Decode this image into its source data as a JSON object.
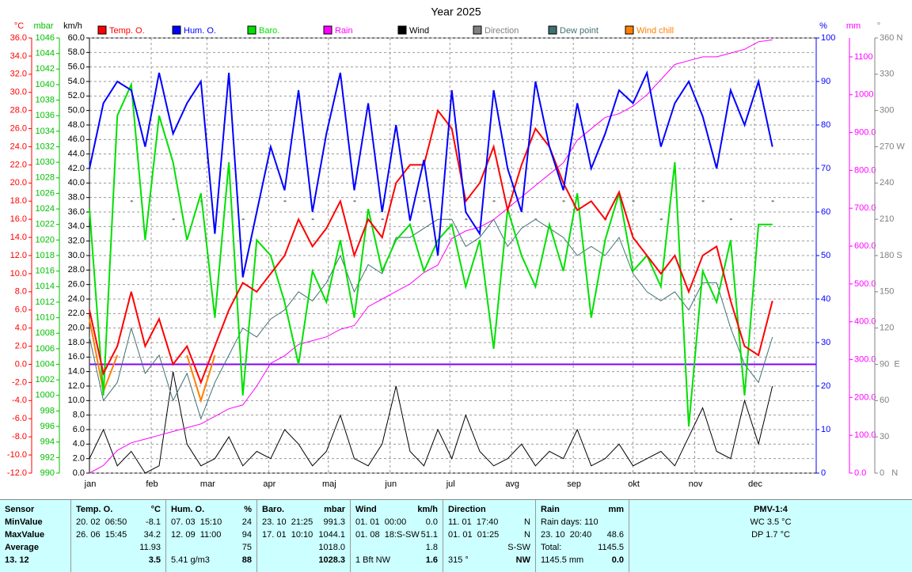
{
  "chart_data": {
    "type": "line",
    "title": "Year 2025",
    "xlim": [
      1,
      366
    ],
    "xticks": [
      {
        "value": 1,
        "label": "jan"
      },
      {
        "value": 32,
        "label": "feb"
      },
      {
        "value": 60,
        "label": "mar"
      },
      {
        "value": 91,
        "label": "apr"
      },
      {
        "value": 121,
        "label": "maj"
      },
      {
        "value": 152,
        "label": "jun"
      },
      {
        "value": 182,
        "label": "jul"
      },
      {
        "value": 213,
        "label": "avg"
      },
      {
        "value": 244,
        "label": "sep"
      },
      {
        "value": 274,
        "label": "okt"
      },
      {
        "value": 305,
        "label": "nov"
      },
      {
        "value": 335,
        "label": "dec"
      }
    ],
    "axes": {
      "temp": {
        "label": "°C",
        "color": "#ff0000",
        "lim": [
          -12,
          36
        ],
        "ticks": [
          {
            "value": -12,
            "label": "-12.0"
          },
          {
            "value": -10,
            "label": "-10.0"
          },
          {
            "value": -8,
            "label": "-8.0"
          },
          {
            "value": -6,
            "label": "-6.0"
          },
          {
            "value": -4,
            "label": "-4.0"
          },
          {
            "value": -2,
            "label": "-2.0"
          },
          {
            "value": 0,
            "label": "0.0"
          },
          {
            "value": 2,
            "label": "2.0"
          },
          {
            "value": 4,
            "label": "4.0"
          },
          {
            "value": 6,
            "label": "6.0"
          },
          {
            "value": 8,
            "label": "8.0"
          },
          {
            "value": 10,
            "label": "10.0"
          },
          {
            "value": 12,
            "label": "12.0"
          },
          {
            "value": 14,
            "label": "14.0"
          },
          {
            "value": 16,
            "label": "16.0"
          },
          {
            "value": 18,
            "label": "18.0"
          },
          {
            "value": 20,
            "label": "20.0"
          },
          {
            "value": 22,
            "label": "22.0"
          },
          {
            "value": 24,
            "label": "24.0"
          },
          {
            "value": 26,
            "label": "26.0"
          },
          {
            "value": 28,
            "label": "28.0"
          },
          {
            "value": 30,
            "label": "30.0"
          },
          {
            "value": 32,
            "label": "32.0"
          },
          {
            "value": 34,
            "label": "34.0"
          },
          {
            "value": 36,
            "label": "36.0"
          }
        ]
      },
      "mbar": {
        "label": "mbar",
        "color": "#00c000",
        "lim": [
          990,
          1046
        ],
        "ticks": [
          990,
          992,
          994,
          996,
          998,
          1000,
          1002,
          1004,
          1006,
          1008,
          1010,
          1012,
          1014,
          1016,
          1018,
          1020,
          1022,
          1024,
          1026,
          1028,
          1030,
          1032,
          1034,
          1036,
          1038,
          1040,
          1042,
          1044,
          1046
        ]
      },
      "kmh": {
        "label": "km/h",
        "color": "#000000",
        "lim": [
          0,
          60
        ],
        "ticks": [
          {
            "value": 0,
            "label": "0.0"
          },
          {
            "value": 2,
            "label": "2.0"
          },
          {
            "value": 4,
            "label": "4.0"
          },
          {
            "value": 6,
            "label": "6.0"
          },
          {
            "value": 8,
            "label": "8.0"
          },
          {
            "value": 10,
            "label": "10.0"
          },
          {
            "value": 12,
            "label": "12.0"
          },
          {
            "value": 14,
            "label": "14.0"
          },
          {
            "value": 16,
            "label": "16.0"
          },
          {
            "value": 18,
            "label": "18.0"
          },
          {
            "value": 20,
            "label": "20.0"
          },
          {
            "value": 22,
            "label": "22.0"
          },
          {
            "value": 24,
            "label": "24.0"
          },
          {
            "value": 26,
            "label": "26.0"
          },
          {
            "value": 28,
            "label": "28.0"
          },
          {
            "value": 30,
            "label": "30.0"
          },
          {
            "value": 32,
            "label": "32.0"
          },
          {
            "value": 34,
            "label": "34.0"
          },
          {
            "value": 36,
            "label": "36.0"
          },
          {
            "value": 38,
            "label": "38.0"
          },
          {
            "value": 40,
            "label": "40.0"
          },
          {
            "value": 42,
            "label": "42.0"
          },
          {
            "value": 44,
            "label": "44.0"
          },
          {
            "value": 46,
            "label": "46.0"
          },
          {
            "value": 48,
            "label": "48.0"
          },
          {
            "value": 50,
            "label": "50.0"
          },
          {
            "value": 52,
            "label": "52.0"
          },
          {
            "value": 54,
            "label": "54.0"
          },
          {
            "value": 56,
            "label": "56.0"
          },
          {
            "value": 58,
            "label": "58.0"
          },
          {
            "value": 60,
            "label": "60.0"
          }
        ]
      },
      "pct": {
        "label": "%",
        "color": "#0000ff",
        "lim": [
          0,
          100
        ],
        "ticks": [
          0,
          10,
          20,
          30,
          40,
          50,
          60,
          70,
          80,
          90,
          100
        ]
      },
      "mm": {
        "label": "mm",
        "color": "#ff00ff",
        "lim": [
          0,
          1150
        ],
        "ticks": [
          {
            "value": 0,
            "label": "0.0"
          },
          {
            "value": 100,
            "label": "100.0"
          },
          {
            "value": 200,
            "label": "200.0"
          },
          {
            "value": 300,
            "label": "300.0"
          },
          {
            "value": 400,
            "label": "400.0"
          },
          {
            "value": 500,
            "label": "500.0"
          },
          {
            "value": 600,
            "label": "600.0"
          },
          {
            "value": 700,
            "label": "700.0"
          },
          {
            "value": 800,
            "label": "800.0"
          },
          {
            "value": 900,
            "label": "900.0"
          },
          1000,
          1100
        ]
      },
      "dir": {
        "label": "°",
        "color": "#808080",
        "lim": [
          0,
          360
        ],
        "ticks": [
          {
            "value": 0,
            "label": "0   N"
          },
          30,
          60,
          {
            "value": 90,
            "label": "90  E"
          },
          120,
          150,
          {
            "value": 180,
            "label": "180 S"
          },
          210,
          240,
          {
            "value": 270,
            "label": "270 W"
          },
          300,
          330,
          {
            "value": 360,
            "label": "360 N"
          }
        ]
      }
    },
    "x": [
      1,
      8,
      15,
      22,
      29,
      36,
      43,
      50,
      57,
      64,
      71,
      78,
      85,
      92,
      99,
      106,
      113,
      120,
      127,
      134,
      141,
      148,
      155,
      162,
      169,
      176,
      183,
      190,
      197,
      204,
      211,
      218,
      225,
      232,
      239,
      246,
      253,
      260,
      267,
      274,
      281,
      288,
      295,
      302,
      309,
      316,
      323,
      330,
      337,
      344
    ],
    "series": [
      {
        "name": "Temp. O.",
        "color": "#ff0000",
        "axis": "temp",
        "values": [
          6,
          -1,
          2,
          8,
          2,
          5,
          0,
          2,
          -2,
          2,
          6,
          9,
          8,
          10,
          12,
          16,
          13,
          15,
          18,
          12,
          16,
          14,
          20,
          22,
          22,
          28,
          26,
          18,
          20,
          24,
          17,
          22,
          26,
          24,
          20,
          17,
          18,
          16,
          19,
          14,
          12,
          10,
          12,
          8,
          12,
          13,
          7,
          2,
          1,
          7
        ]
      },
      {
        "name": "Hum. O.",
        "color": "#0000ff",
        "axis": "pct",
        "values": [
          70,
          85,
          90,
          88,
          75,
          92,
          78,
          85,
          90,
          55,
          92,
          45,
          60,
          75,
          65,
          88,
          60,
          78,
          92,
          65,
          85,
          60,
          80,
          58,
          72,
          50,
          88,
          60,
          55,
          88,
          70,
          60,
          90,
          75,
          65,
          85,
          70,
          78,
          88,
          85,
          92,
          75,
          85,
          90,
          82,
          70,
          88,
          80,
          90,
          75
        ]
      },
      {
        "name": "Baro.",
        "color": "#00e000",
        "axis": "mbar",
        "values": [
          1024,
          1000,
          1036,
          1040,
          1020,
          1036,
          1030,
          1020,
          1026,
          1010,
          1030,
          1000,
          1020,
          1018,
          1012,
          1004,
          1016,
          1012,
          1020,
          1010,
          1024,
          1016,
          1020,
          1022,
          1016,
          1020,
          1022,
          1014,
          1020,
          1006,
          1024,
          1018,
          1014,
          1022,
          1016,
          1026,
          1010,
          1020,
          1026,
          1016,
          1018,
          1014,
          1030,
          996,
          1016,
          1012,
          1020,
          1000,
          1022,
          1022
        ]
      },
      {
        "name": "Rain",
        "color": "#ff00ff",
        "axis": "mm",
        "values": [
          0,
          20,
          60,
          80,
          90,
          100,
          110,
          120,
          130,
          150,
          170,
          180,
          230,
          290,
          310,
          340,
          350,
          360,
          380,
          390,
          440,
          460,
          480,
          500,
          530,
          550,
          620,
          640,
          650,
          670,
          700,
          730,
          760,
          790,
          820,
          880,
          910,
          940,
          950,
          970,
          1000,
          1040,
          1080,
          1090,
          1100,
          1100,
          1110,
          1120,
          1140,
          1145
        ]
      },
      {
        "name": "Wind",
        "color": "#000000",
        "axis": "kmh",
        "values": [
          2,
          6,
          1,
          3,
          0,
          1,
          14,
          4,
          1,
          2,
          5,
          1,
          3,
          2,
          6,
          4,
          1,
          3,
          8,
          2,
          1,
          4,
          12,
          3,
          1,
          6,
          2,
          8,
          3,
          1,
          2,
          4,
          1,
          3,
          2,
          6,
          1,
          2,
          4,
          1,
          2,
          3,
          1,
          5,
          9,
          3,
          2,
          10,
          4,
          12
        ]
      },
      {
        "name": "Direction",
        "color": "#808080",
        "axis": "dir",
        "marker": "dots",
        "values": [
          210,
          null,
          null,
          225,
          null,
          null,
          210,
          null,
          225,
          null,
          null,
          210,
          null,
          null,
          225,
          null,
          210,
          null,
          null,
          225,
          null,
          210,
          null,
          null,
          225,
          null,
          null,
          210,
          null,
          225,
          null,
          null,
          210,
          null,
          225,
          null,
          null,
          210,
          null,
          225,
          null,
          210,
          null,
          null,
          225,
          null,
          210,
          null,
          null,
          225
        ]
      },
      {
        "name": "Dew point",
        "color": "#407070",
        "axis": "temp",
        "values": [
          3,
          -4,
          -2,
          4,
          -1,
          1,
          -4,
          -1,
          -6,
          -2,
          1,
          4,
          3,
          5,
          6,
          8,
          7,
          9,
          12,
          8,
          11,
          10,
          14,
          14,
          15,
          16,
          16,
          13,
          14,
          16,
          13,
          15,
          16,
          15,
          14,
          12,
          13,
          12,
          14,
          10,
          8,
          7,
          8,
          6,
          9,
          9,
          4,
          0,
          -2,
          3
        ]
      },
      {
        "name": "Wind chill",
        "color": "#ff8000",
        "axis": "temp",
        "values": [
          5,
          -3,
          1,
          null,
          null,
          null,
          null,
          1,
          -4,
          1,
          null,
          null,
          null,
          null,
          null,
          null,
          null,
          null,
          null,
          null,
          null,
          null,
          null,
          null,
          null,
          null,
          null,
          null,
          null,
          null,
          null,
          null,
          null,
          null,
          null,
          null,
          null,
          null,
          null,
          null,
          null,
          null,
          null,
          null,
          null,
          null,
          null,
          null,
          null,
          null
        ]
      }
    ]
  },
  "stats": {
    "sensor": [
      "Sensor",
      "MinValue",
      "MaxValue",
      "Average",
      "13. 12"
    ],
    "columns": [
      {
        "title": "Temp. O.",
        "unit": "°C",
        "rows": [
          {
            "left": "20. 02  06:50",
            "right": "-8.1"
          },
          {
            "left": "26. 06  15:45",
            "right": "34.2"
          },
          {
            "right": "11.93"
          },
          {
            "right": "3.5"
          }
        ]
      },
      {
        "title": "Hum. O.",
        "unit": "%",
        "rows": [
          {
            "left": "07. 03  15:10",
            "right": "24"
          },
          {
            "left": "12. 09  11:00",
            "right": "94"
          },
          {
            "right": "75"
          },
          {
            "left": "5.41 g/m3",
            "right": "88"
          }
        ]
      },
      {
        "title": "Baro.",
        "unit": "mbar",
        "rows": [
          {
            "left": "23. 10  21:25",
            "right": "991.3"
          },
          {
            "left": "17. 01  10:10",
            "right": "1044.1"
          },
          {
            "right": "1018.0"
          },
          {
            "right": "1028.3"
          }
        ]
      },
      {
        "title": "Wind",
        "unit": "km/h",
        "rows": [
          {
            "left": "01. 01  00:00",
            "right": "0.0"
          },
          {
            "left": "01. 08  18:S-SW",
            "right": "51.1"
          },
          {
            "right": "1.8"
          },
          {
            "left": "1 Bft NW",
            "right": "1.6"
          }
        ]
      },
      {
        "title": "Direction",
        "rows": [
          {
            "left": "11. 01  17:40",
            "right": "N"
          },
          {
            "left": "01. 01  01:25",
            "right": "N"
          },
          {
            "right": "S-SW"
          },
          {
            "left": "315 °",
            "right": "NW"
          }
        ]
      },
      {
        "title": "Rain",
        "unit": "mm",
        "rows": [
          {
            "left": "Rain days: 110"
          },
          {
            "left": "23. 10  20:40",
            "right": "48.6"
          },
          {
            "left": "Total:",
            "right": "1145.5"
          },
          {
            "left": "1145.5 mm",
            "right": "0.0"
          }
        ]
      }
    ],
    "pmv": {
      "title": "PMV-1:4",
      "lines": [
        "WC 3.5 °C",
        "DP 1.7 °C"
      ]
    }
  }
}
